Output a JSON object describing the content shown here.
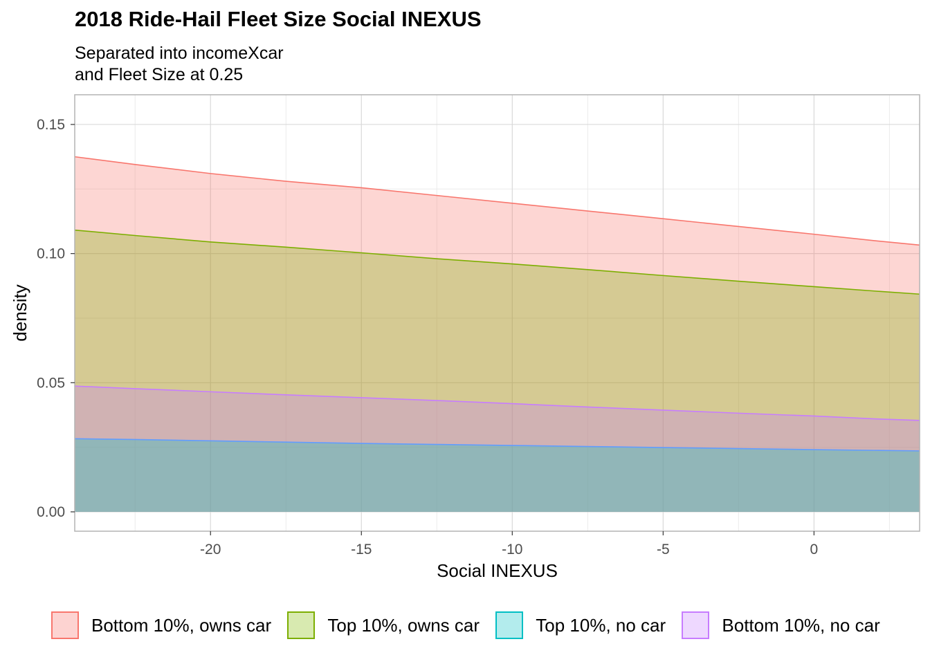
{
  "chart_data": {
    "type": "area",
    "title": "2018 Ride-Hail Fleet Size Social INEXUS",
    "subtitle": [
      "Separated into incomeXcar",
      "and Fleet Size at 0.25"
    ],
    "xlabel": "Social INEXUS",
    "ylabel": "density",
    "xlim": [
      -24.5,
      3.5
    ],
    "ylim": [
      -0.0075,
      0.1615
    ],
    "x_ticks": [
      -20,
      -15,
      -10,
      -5,
      0
    ],
    "x_tick_labels": [
      "-20",
      "-15",
      "-10",
      "-5",
      "0"
    ],
    "y_ticks": [
      0.0,
      0.05,
      0.1,
      0.15
    ],
    "y_tick_labels": [
      "0.00",
      "0.05",
      "0.10",
      "0.15"
    ],
    "grid": true,
    "legend_position": "bottom",
    "x": [
      -24.5,
      -22.5,
      -20,
      -17.5,
      -15,
      -12.5,
      -10,
      -7.5,
      -5,
      -2.5,
      0,
      2,
      3.5
    ],
    "series": [
      {
        "name": "Bottom 10%, owns car",
        "color": "#F8766D",
        "fill": "#FDD3D1",
        "values": [
          0.1375,
          0.1345,
          0.131,
          0.128,
          0.1255,
          0.1225,
          0.1195,
          0.1165,
          0.1135,
          0.1105,
          0.1075,
          0.105,
          0.1033
        ]
      },
      {
        "name": "Top 10%, owns car",
        "color": "#7CAE00",
        "fill": "#D8EAB0",
        "values": [
          0.1091,
          0.107,
          0.1045,
          0.1025,
          0.1003,
          0.098,
          0.096,
          0.0938,
          0.0915,
          0.0893,
          0.0872,
          0.0855,
          0.0843
        ]
      },
      {
        "name": "Top 10%, no car",
        "color": "#00BFC4",
        "fill": "#B3ECED",
        "values": [
          0.0283,
          0.028,
          0.0275,
          0.027,
          0.0265,
          0.0261,
          0.0257,
          0.0253,
          0.0249,
          0.0245,
          0.0241,
          0.0238,
          0.0236
        ]
      },
      {
        "name": "Bottom 10%, no car",
        "color": "#C77CFF",
        "fill": "#EED8FF",
        "values": [
          0.0487,
          0.0477,
          0.0465,
          0.0453,
          0.0442,
          0.0431,
          0.0419,
          0.0406,
          0.0394,
          0.0382,
          0.0371,
          0.036,
          0.0354
        ]
      }
    ],
    "draw_order": [
      0,
      1,
      3,
      2
    ],
    "panel_colors": {
      "background": "#ffffff",
      "grid_major": "#d9d9d9",
      "grid_minor": "#ebebeb",
      "border": "#b3b3b3",
      "tick_text": "#4d4d4d",
      "line_top10_no_car": "#619CFF"
    }
  }
}
